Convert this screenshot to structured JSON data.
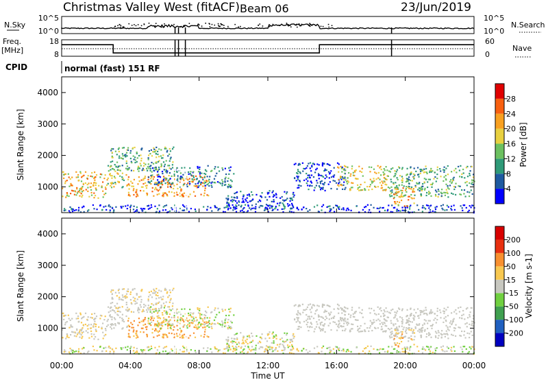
{
  "header": {
    "title": "Christmas Valley West (fitACF)",
    "beam": "Beam 06",
    "date": "23/Jun/2019"
  },
  "chart_data": [
    {
      "type": "line",
      "name": "sky-noise-panel",
      "left_label": "N.Sky",
      "right_label": "N.Search",
      "left_ticks": [
        "10^5",
        "10^0"
      ],
      "right_ticks": [
        "10^5",
        "10^0"
      ]
    },
    {
      "type": "line",
      "name": "frequency-panel",
      "left_label": "Freq. [MHz]",
      "right_label": "Nave",
      "left_ticks": [
        "18",
        "8"
      ],
      "right_ticks": [
        "60",
        "0"
      ],
      "freq_steps": [
        {
          "from": "00:00",
          "to": "03:00",
          "value": 15
        },
        {
          "from": "03:00",
          "to": "15:00",
          "value": 10
        },
        {
          "from": "15:00",
          "to": "24:00",
          "value": 15
        }
      ]
    },
    {
      "type": "text",
      "name": "cpid",
      "label": "CPID",
      "value": "normal (fast) 151 RF"
    },
    {
      "type": "heatmap",
      "name": "power-panel",
      "ylabel": "Slant Range [km]",
      "yticks": [
        "4000",
        "3000",
        "2000",
        "1000"
      ],
      "ylim": [
        180,
        4500
      ],
      "colorbar_label": "Power [dB]",
      "colorbar_ticks": [
        "28",
        "24",
        "20",
        "16",
        "12",
        "8",
        "4"
      ]
    },
    {
      "type": "heatmap",
      "name": "velocity-panel",
      "ylabel": "Slant Range [km]",
      "yticks": [
        "4000",
        "3000",
        "2000",
        "1000"
      ],
      "ylim": [
        180,
        4500
      ],
      "colorbar_label": "Velocity [m s-1]",
      "colorbar_ticks": [
        "200",
        "100",
        "50",
        "15",
        "-15",
        "-50",
        "-100",
        "-200"
      ]
    }
  ],
  "xaxis": {
    "label": "Time UT",
    "ticks": [
      "00:00",
      "04:00",
      "08:00",
      "12:00",
      "16:00",
      "20:00",
      "00:00"
    ]
  },
  "colors": {
    "power": [
      "#0000ff",
      "#1e5aa0",
      "#2f9a78",
      "#6cc060",
      "#e8d040",
      "#f8a020",
      "#f86010",
      "#e00000"
    ],
    "velocity": [
      "#0000c0",
      "#2060c0",
      "#40a050",
      "#70d040",
      "#c8c8c0",
      "#f8c850",
      "#f89030",
      "#e83010",
      "#d80000"
    ]
  }
}
